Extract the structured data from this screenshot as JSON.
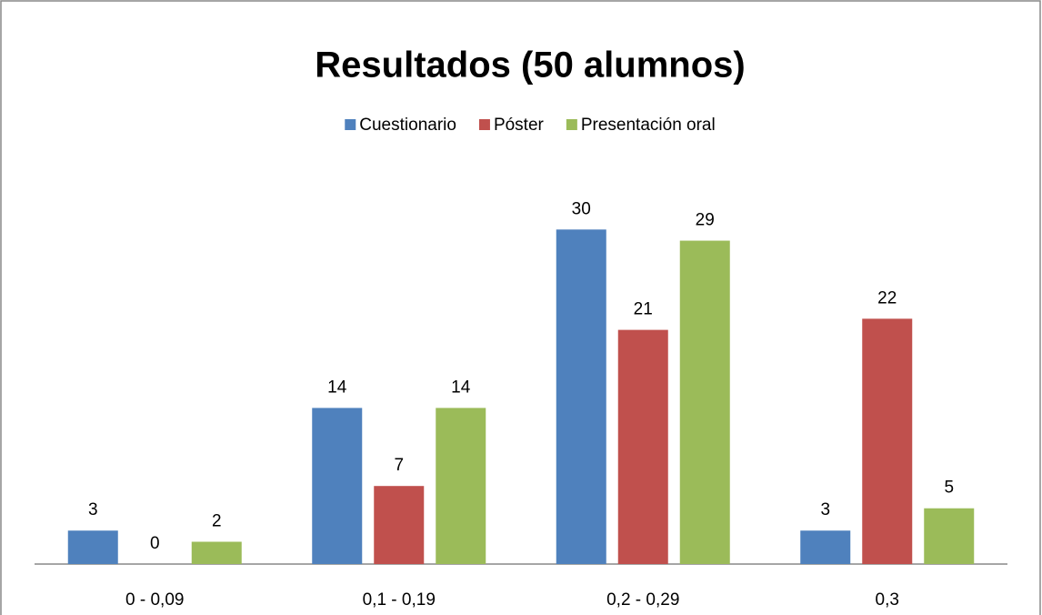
{
  "chart_data": {
    "type": "bar",
    "title": "Resultados (50 alumnos)",
    "categories": [
      "0 - 0,09",
      "0,1 - 0,19",
      "0,2 - 0,29",
      "0,3"
    ],
    "series": [
      {
        "name": "Cuestionario",
        "color": "#4f81bd",
        "values": [
          3,
          14,
          30,
          3
        ]
      },
      {
        "name": "Póster",
        "color": "#c0504d",
        "values": [
          0,
          7,
          21,
          22
        ]
      },
      {
        "name": "Presentación oral",
        "color": "#9bbb59",
        "values": [
          2,
          14,
          29,
          5
        ]
      }
    ],
    "ylim": [
      0,
      35
    ],
    "legend": "top"
  }
}
